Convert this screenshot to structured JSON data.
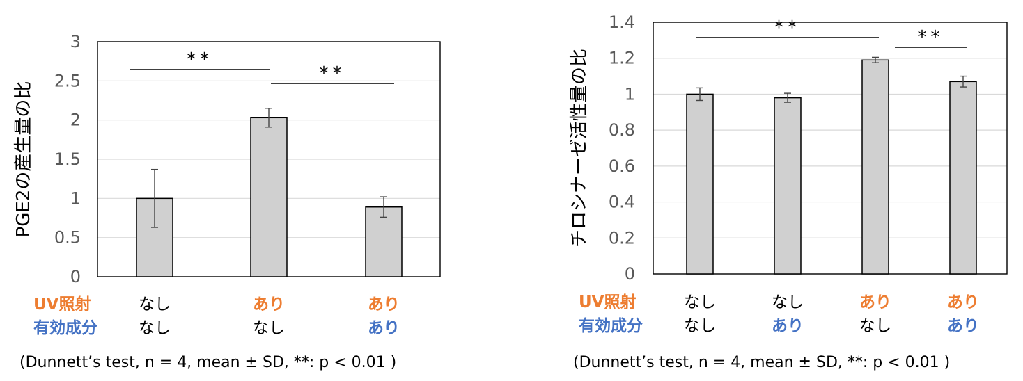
{
  "colors": {
    "uv": "#ED7D31",
    "active": "#4472C4",
    "bar_fill": "#D0D0D0",
    "bar_stroke": "#000000",
    "grid": "#D9D9D9"
  },
  "chart_data": [
    {
      "type": "bar",
      "ylabel": "PGE2の産生量の比",
      "ylim": [
        0,
        3
      ],
      "yticks": [
        "0",
        "0.5",
        "1",
        "1.5",
        "2",
        "2.5",
        "3"
      ],
      "values": [
        1.0,
        2.03,
        0.89
      ],
      "errors": [
        0.37,
        0.12,
        0.13
      ],
      "significance": [
        {
          "from": 0,
          "to": 1,
          "label": "**"
        },
        {
          "from": 1,
          "to": 2,
          "label": "**"
        }
      ],
      "conditions": {
        "row_labels": {
          "uv": "UV照射",
          "active": "有効成分"
        },
        "uv": [
          "なし",
          "あり",
          "あり"
        ],
        "active": [
          "なし",
          "なし",
          "あり"
        ]
      },
      "footnote": "(Dunnett’s test, n = 4, mean ± SD, **: p < 0.01 )"
    },
    {
      "type": "bar",
      "ylabel": "チロシナーゼ活性量の比",
      "ylim": [
        0,
        1.4
      ],
      "yticks": [
        "0",
        "0.2",
        "0.4",
        "0.6",
        "0.8",
        "1",
        "1.2",
        "1.4"
      ],
      "values": [
        1.0,
        0.98,
        1.19,
        1.07
      ],
      "errors": [
        0.035,
        0.025,
        0.015,
        0.03
      ],
      "significance": [
        {
          "from": 0,
          "to": 2,
          "label": "**"
        },
        {
          "from": 2,
          "to": 3,
          "label": "**"
        }
      ],
      "conditions": {
        "row_labels": {
          "uv": "UV照射",
          "active": "有効成分"
        },
        "uv": [
          "なし",
          "なし",
          "あり",
          "あり"
        ],
        "active": [
          "なし",
          "あり",
          "なし",
          "あり"
        ]
      },
      "footnote": "(Dunnett’s test, n = 4, mean ± SD, **: p < 0.01 )"
    }
  ]
}
